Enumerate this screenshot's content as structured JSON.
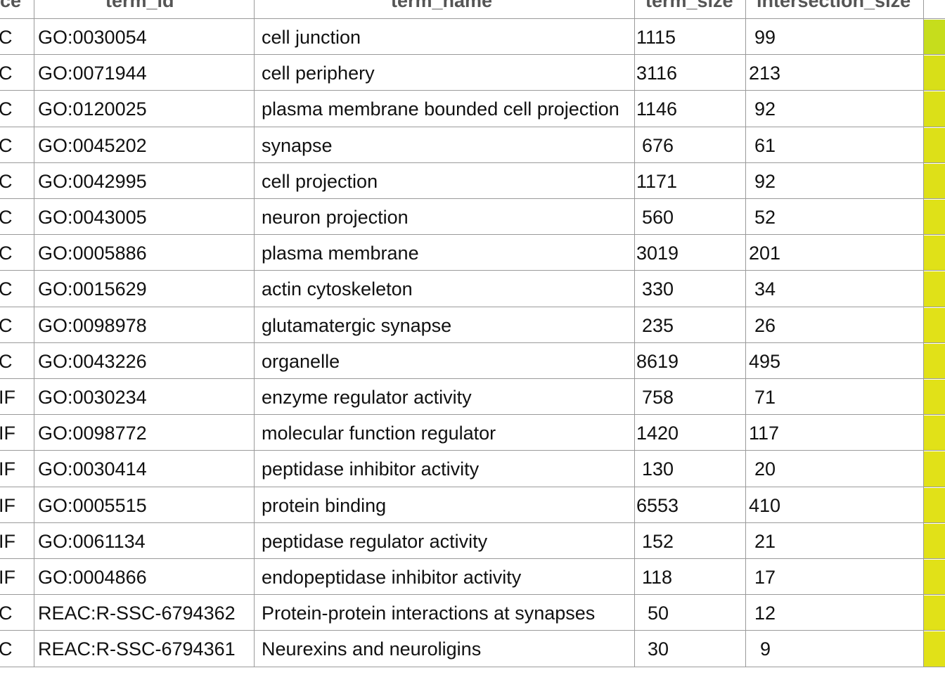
{
  "table": {
    "headers": {
      "source": "ce",
      "term_id": "term_id",
      "term_name": "term_name",
      "term_size": "term_size",
      "intersection_size": "intersection_size"
    },
    "rows": [
      {
        "source": "C",
        "term_id": "GO:0030054",
        "term_name": "cell junction",
        "term_size": "1115",
        "intersection_size": "99",
        "color": "#c6dd1c"
      },
      {
        "source": "C",
        "term_id": "GO:0071944",
        "term_name": "cell periphery",
        "term_size": "3116",
        "intersection_size": "213",
        "color": "#d8df18"
      },
      {
        "source": "C",
        "term_id": "GO:0120025",
        "term_name": "plasma membrane bounded cell projection",
        "term_size": "1146",
        "intersection_size": "92",
        "color": "#dbe018"
      },
      {
        "source": "C",
        "term_id": "GO:0045202",
        "term_name": "synapse",
        "term_size": "676",
        "intersection_size": "61",
        "color": "#dde018"
      },
      {
        "source": "C",
        "term_id": "GO:0042995",
        "term_name": "cell projection",
        "term_size": "1171",
        "intersection_size": "92",
        "color": "#dee018"
      },
      {
        "source": "C",
        "term_id": "GO:0043005",
        "term_name": "neuron projection",
        "term_size": "560",
        "intersection_size": "52",
        "color": "#dfe118"
      },
      {
        "source": "C",
        "term_id": "GO:0005886",
        "term_name": "plasma membrane",
        "term_size": "3019",
        "intersection_size": "201",
        "color": "#e0e118"
      },
      {
        "source": "C",
        "term_id": "GO:0015629",
        "term_name": "actin cytoskeleton",
        "term_size": "330",
        "intersection_size": "34",
        "color": "#e0e118"
      },
      {
        "source": "C",
        "term_id": "GO:0098978",
        "term_name": "glutamatergic synapse",
        "term_size": "235",
        "intersection_size": "26",
        "color": "#e1e118"
      },
      {
        "source": "C",
        "term_id": "GO:0043226",
        "term_name": "organelle",
        "term_size": "8619",
        "intersection_size": "495",
        "color": "#e1e118"
      },
      {
        "source": "IF",
        "term_id": "GO:0030234",
        "term_name": "enzyme regulator activity",
        "term_size": "758",
        "intersection_size": "71",
        "color": "#e1e118"
      },
      {
        "source": "IF",
        "term_id": "GO:0098772",
        "term_name": "molecular function regulator",
        "term_size": "1420",
        "intersection_size": "117",
        "color": "#e1e118"
      },
      {
        "source": "IF",
        "term_id": "GO:0030414",
        "term_name": "peptidase inhibitor activity",
        "term_size": "130",
        "intersection_size": "20",
        "color": "#e1e118"
      },
      {
        "source": "IF",
        "term_id": "GO:0005515",
        "term_name": "protein binding",
        "term_size": "6553",
        "intersection_size": "410",
        "color": "#e1e118"
      },
      {
        "source": "IF",
        "term_id": "GO:0061134",
        "term_name": "peptidase regulator activity",
        "term_size": "152",
        "intersection_size": "21",
        "color": "#e1e118"
      },
      {
        "source": "IF",
        "term_id": "GO:0004866",
        "term_name": "endopeptidase inhibitor activity",
        "term_size": "118",
        "intersection_size": "17",
        "color": "#e1e118"
      },
      {
        "source": "C",
        "term_id": "REAC:R-SSC-6794362",
        "term_name": "Protein-protein interactions at synapses",
        "term_size": "50",
        "intersection_size": "12",
        "color": "#e1e118"
      },
      {
        "source": "C",
        "term_id": "REAC:R-SSC-6794361",
        "term_name": "Neurexins and neuroligins",
        "term_size": "30",
        "intersection_size": "9",
        "color": "#e1e118"
      }
    ]
  }
}
